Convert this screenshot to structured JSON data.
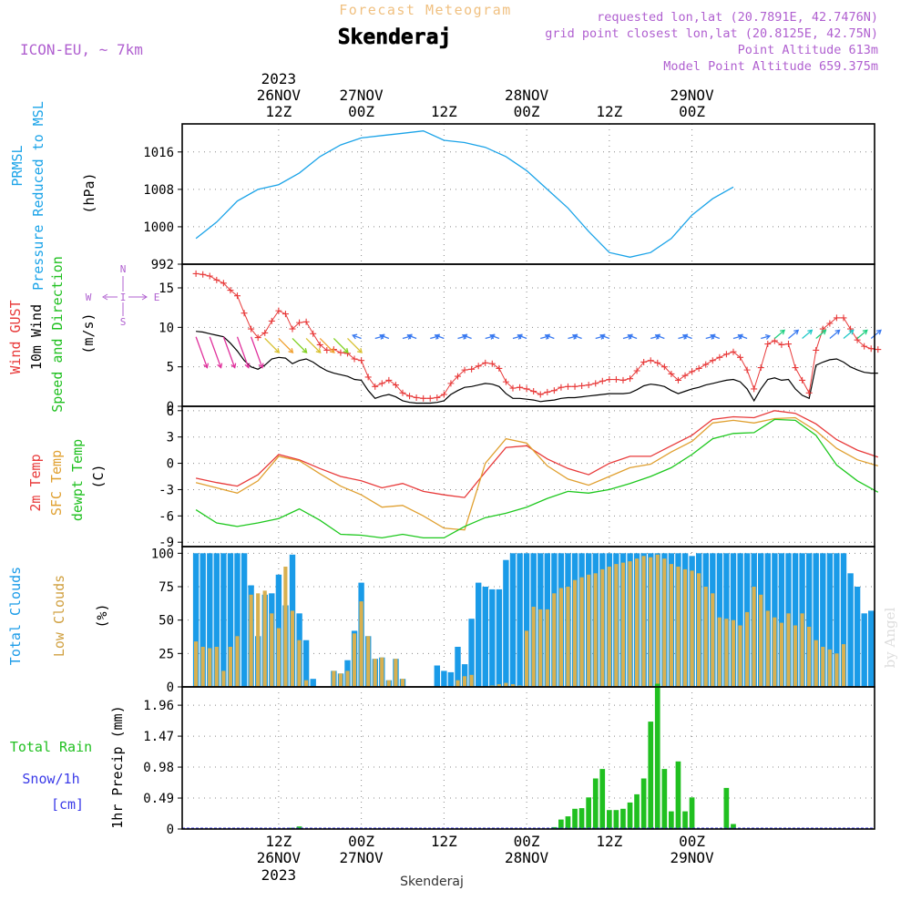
{
  "header": {
    "supertitle": "Forecast Meteogram",
    "station": "Skenderaj",
    "model": "ICON-EU, ~ 7km",
    "requested": "requested lon,lat (20.7891E, 42.7476N)",
    "gridpoint": "grid point closest lon,lat (20.8125E, 42.75N)",
    "point_alt": "Point Altitude 613m",
    "model_alt": "Model Point Altitude 659.375m",
    "footer": "Skenderaj",
    "watermark": "by Angel"
  },
  "time_axis": {
    "top_year": "2023",
    "top_labels": [
      {
        "h": 12,
        "l1": "26NOV",
        "l2": "12Z"
      },
      {
        "h": 24,
        "l1": "27NOV",
        "l2": "00Z"
      },
      {
        "h": 36,
        "l1": "",
        "l2": "12Z"
      },
      {
        "h": 48,
        "l1": "28NOV",
        "l2": "00Z"
      },
      {
        "h": 60,
        "l1": "",
        "l2": "12Z"
      },
      {
        "h": 72,
        "l1": "29NOV",
        "l2": "00Z"
      }
    ],
    "bottom_labels": [
      {
        "h": 12,
        "l1": "12Z",
        "l2": "26NOV",
        "l3": "2023"
      },
      {
        "h": 24,
        "l1": "00Z",
        "l2": "27NOV",
        "l3": ""
      },
      {
        "h": 36,
        "l1": "12Z",
        "l2": "",
        "l3": ""
      },
      {
        "h": 48,
        "l1": "00Z",
        "l2": "28NOV",
        "l3": ""
      },
      {
        "h": 60,
        "l1": "12Z",
        "l2": "",
        "l3": ""
      },
      {
        "h": 72,
        "l1": "00Z",
        "l2": "29NOV",
        "l3": ""
      }
    ]
  },
  "panel_labels": {
    "pressure": {
      "l1": "PRMSL",
      "l2": "Pressure Reduced to MSL",
      "unit": "(hPa)"
    },
    "wind": {
      "gust": "Wind GUST",
      "wind10": "10m Wind",
      "dir": "Speed and Direction",
      "unit": "(m/s)"
    },
    "compass": {
      "n": "N",
      "s": "S",
      "e": "E",
      "w": "W",
      "c": "I"
    },
    "temp": {
      "t2m": "2m Temp",
      "sfc": "SFC Temp",
      "dew": "dewpt Temp",
      "unit": "(C)"
    },
    "clouds": {
      "total": "Total Clouds",
      "low": "Low Clouds",
      "unit": "(%)"
    },
    "precip": {
      "rain": "Total Rain",
      "snow": "Snow/1h",
      "cm": "[cm]",
      "unit": "1hr Precip (mm)"
    }
  },
  "colors": {
    "pressure": "#1aa3e8",
    "gust": "#e83a3a",
    "wind": "#000000",
    "t2m": "#e83a3a",
    "sfc": "#e0a030",
    "dew": "#1ec81e",
    "total_cloud": "#1a9be8",
    "low_cloud": "#d8b050",
    "rain": "#20c020",
    "snow": "#3a3ae8",
    "purple": "#b060d0",
    "header": "#f0b060"
  },
  "chart_data": [
    {
      "type": "line",
      "name": "pressure",
      "title": "PRMSL Pressure Reduced to MSL",
      "ylabel": "(hPa)",
      "ylim": [
        992,
        1022
      ],
      "yticks": [
        992,
        1000,
        1008,
        1016
      ],
      "x_hours_start": 0,
      "x_hours_step": 3,
      "values": [
        997.5,
        1001.0,
        1005.5,
        1008.0,
        1009.0,
        1011.5,
        1015.0,
        1017.5,
        1019.0,
        1019.5,
        1020.0,
        1020.5,
        1018.5,
        1018.0,
        1017.0,
        1015.0,
        1012.0,
        1008.0,
        1004.0,
        999.0,
        994.5,
        993.5,
        994.5,
        997.5,
        1002.5,
        1006.0,
        1008.5
      ]
    },
    {
      "type": "line",
      "name": "wind",
      "title": "Wind GUST / 10m Wind Speed and Direction",
      "ylabel": "(m/s)",
      "ylim": [
        0,
        18
      ],
      "yticks": [
        0,
        5,
        10,
        15
      ],
      "x_hours_start": 0,
      "x_hours_step": 1,
      "series": [
        {
          "name": "Wind GUST",
          "values": [
            16.8,
            16.7,
            16.5,
            16.0,
            15.6,
            14.7,
            14.0,
            11.8,
            9.8,
            8.7,
            9.3,
            10.8,
            12.1,
            11.7,
            9.8,
            10.6,
            10.7,
            9.2,
            7.8,
            7.1,
            7.2,
            6.8,
            6.7,
            6.0,
            5.8,
            3.7,
            2.5,
            2.9,
            3.3,
            2.7,
            1.7,
            1.3,
            1.1,
            1.0,
            1.0,
            1.1,
            1.5,
            2.9,
            3.8,
            4.6,
            4.7,
            5.1,
            5.5,
            5.4,
            4.8,
            3.1,
            2.3,
            2.4,
            2.2,
            1.9,
            1.5,
            1.8,
            2.0,
            2.4,
            2.5,
            2.5,
            2.6,
            2.7,
            2.9,
            3.2,
            3.4,
            3.4,
            3.3,
            3.5,
            4.5,
            5.6,
            5.8,
            5.5,
            5.0,
            4.1,
            3.3,
            3.9,
            4.4,
            4.8,
            5.3,
            5.8,
            6.2,
            6.6,
            6.9,
            6.2,
            4.6,
            2.2,
            4.9,
            7.9,
            8.3,
            7.8,
            7.9,
            4.9,
            3.3,
            1.7,
            7.1,
            9.8,
            10.5,
            11.2,
            11.2,
            9.8,
            8.4,
            7.6,
            7.3,
            7.2
          ]
        },
        {
          "name": "10m Wind",
          "values": [
            9.5,
            9.4,
            9.2,
            9.0,
            8.8,
            8.0,
            7.0,
            5.8,
            5.0,
            4.7,
            5.2,
            6.0,
            6.2,
            6.1,
            5.4,
            5.8,
            6.0,
            5.6,
            5.0,
            4.5,
            4.2,
            4.0,
            3.8,
            3.4,
            3.3,
            2.0,
            1.0,
            1.3,
            1.5,
            1.2,
            0.7,
            0.5,
            0.4,
            0.4,
            0.4,
            0.5,
            0.7,
            1.5,
            2.0,
            2.4,
            2.5,
            2.7,
            2.9,
            2.8,
            2.5,
            1.6,
            1.0,
            1.0,
            0.9,
            0.8,
            0.6,
            0.7,
            0.8,
            1.0,
            1.1,
            1.1,
            1.2,
            1.3,
            1.4,
            1.5,
            1.6,
            1.6,
            1.6,
            1.7,
            2.1,
            2.6,
            2.8,
            2.7,
            2.5,
            2.0,
            1.6,
            1.9,
            2.2,
            2.4,
            2.7,
            2.9,
            3.1,
            3.3,
            3.4,
            3.1,
            2.2,
            0.7,
            2.2,
            3.4,
            3.6,
            3.3,
            3.4,
            2.2,
            1.4,
            1.0,
            5.2,
            5.6,
            5.9,
            6.0,
            5.6,
            5.0,
            4.6,
            4.3,
            4.2,
            4.2
          ]
        }
      ]
    },
    {
      "type": "line",
      "name": "temperature",
      "title": "2m Temp / SFC Temp / dewpt Temp",
      "ylabel": "(C)",
      "ylim": [
        -9.5,
        6.5
      ],
      "yticks": [
        -9,
        -6,
        -3,
        0,
        3,
        6
      ],
      "x_hours_start": 0,
      "x_hours_step": 3,
      "series": [
        {
          "name": "2m Temp",
          "values": [
            -1.7,
            -2.2,
            -2.6,
            -1.3,
            1.0,
            0.4,
            -0.6,
            -1.5,
            -2.0,
            -2.8,
            -2.3,
            -3.2,
            -3.6,
            -3.9,
            -1.0,
            1.8,
            2.0,
            0.5,
            -0.6,
            -1.3,
            0.0,
            0.8,
            0.8,
            2.0,
            3.2,
            5.0,
            5.3,
            5.2,
            6.0,
            5.7,
            4.5,
            2.7,
            1.5,
            0.7
          ]
        },
        {
          "name": "SFC Temp",
          "values": [
            -2.2,
            -2.8,
            -3.4,
            -2.0,
            0.8,
            0.3,
            -1.2,
            -2.6,
            -3.6,
            -5.0,
            -4.8,
            -6.0,
            -7.4,
            -7.6,
            0.0,
            2.8,
            2.3,
            -0.3,
            -1.8,
            -2.5,
            -1.5,
            -0.5,
            -0.1,
            1.3,
            2.5,
            4.6,
            4.9,
            4.6,
            5.1,
            5.2,
            3.7,
            1.7,
            0.4,
            -0.3
          ]
        },
        {
          "name": "dewpt Temp",
          "values": [
            -5.3,
            -6.8,
            -7.2,
            -6.8,
            -6.3,
            -5.2,
            -6.5,
            -8.1,
            -8.2,
            -8.5,
            -8.1,
            -8.5,
            -8.5,
            -7.2,
            -6.2,
            -5.7,
            -5.0,
            -4.0,
            -3.2,
            -3.4,
            -3.0,
            -2.3,
            -1.5,
            -0.5,
            1.0,
            2.8,
            3.4,
            3.5,
            5.0,
            4.9,
            3.2,
            -0.2,
            -2.0,
            -3.3
          ]
        }
      ]
    },
    {
      "type": "bar",
      "name": "clouds",
      "title": "Total Clouds / Low Clouds",
      "ylabel": "(%)",
      "ylim": [
        0,
        105
      ],
      "yticks": [
        0,
        25,
        50,
        75,
        100
      ],
      "x_hours_start": 0,
      "x_hours_step": 1,
      "series": [
        {
          "name": "Total Clouds",
          "values": [
            100,
            100,
            100,
            100,
            100,
            100,
            100,
            100,
            76,
            38,
            69,
            70,
            84,
            61,
            99,
            55,
            35,
            6,
            0,
            0,
            12,
            10,
            20,
            42,
            78,
            38,
            21,
            22,
            5,
            21,
            6,
            0,
            0,
            0,
            0,
            16,
            12,
            11,
            30,
            17,
            51,
            78,
            75,
            73,
            73,
            95,
            100,
            100,
            100,
            100,
            100,
            100,
            100,
            100,
            100,
            100,
            100,
            100,
            100,
            100,
            100,
            100,
            100,
            100,
            100,
            100,
            100,
            100,
            100,
            100,
            100,
            100,
            98,
            100,
            100,
            100,
            100,
            100,
            100,
            100,
            100,
            100,
            100,
            100,
            100,
            100,
            100,
            100,
            100,
            100,
            100,
            100,
            100,
            100,
            100,
            85,
            75,
            55,
            57
          ]
        },
        {
          "name": "Low Clouds",
          "values": [
            34,
            30,
            29,
            30,
            12,
            30,
            38,
            0,
            69,
            70,
            72,
            55,
            44,
            90,
            57,
            35,
            5,
            0,
            0,
            0,
            12,
            10,
            12,
            40,
            64,
            38,
            21,
            22,
            5,
            21,
            6,
            0,
            0,
            0,
            0,
            0,
            0,
            0,
            5,
            8,
            9,
            0,
            0,
            1,
            2,
            3,
            2,
            1,
            42,
            60,
            58,
            58,
            70,
            74,
            75,
            80,
            82,
            84,
            85,
            88,
            90,
            92,
            93,
            94,
            96,
            98,
            97,
            99,
            96,
            92,
            90,
            88,
            87,
            85,
            75,
            70,
            52,
            51,
            50,
            46,
            56,
            75,
            69,
            57,
            52,
            48,
            55,
            46,
            55,
            45,
            35,
            30,
            28,
            25,
            32
          ]
        }
      ]
    },
    {
      "type": "bar",
      "name": "precipitation",
      "title": "1hr Precip",
      "ylabel": "1hr Precip (mm)",
      "ylim": [
        0,
        2.25
      ],
      "yticks": [
        0,
        0.49,
        0.98,
        1.47,
        1.96
      ],
      "yticklabels": [
        "0",
        "0.49",
        "0.98",
        "1.47",
        "1.96"
      ],
      "x_hours_start": 0,
      "x_hours_step": 1,
      "series": [
        {
          "name": "Total Rain",
          "values": [
            0,
            0,
            0,
            0,
            0,
            0,
            0,
            0,
            0,
            0,
            0,
            0,
            0,
            0,
            0.02,
            0.04,
            0,
            0,
            0,
            0,
            0,
            0,
            0,
            0,
            0,
            0,
            0,
            0,
            0,
            0,
            0,
            0,
            0,
            0,
            0,
            0,
            0,
            0,
            0,
            0,
            0,
            0,
            0,
            0,
            0,
            0,
            0,
            0,
            0,
            0,
            0,
            0,
            0.03,
            0.15,
            0.2,
            0.32,
            0.33,
            0.5,
            0.8,
            0.95,
            0.3,
            0.3,
            0.32,
            0.42,
            0.55,
            0.8,
            1.7,
            2.3,
            0.95,
            0.28,
            1.07,
            0.28,
            0.5,
            0,
            0,
            0,
            0,
            0.65,
            0.08,
            0,
            0
          ]
        }
      ]
    }
  ]
}
